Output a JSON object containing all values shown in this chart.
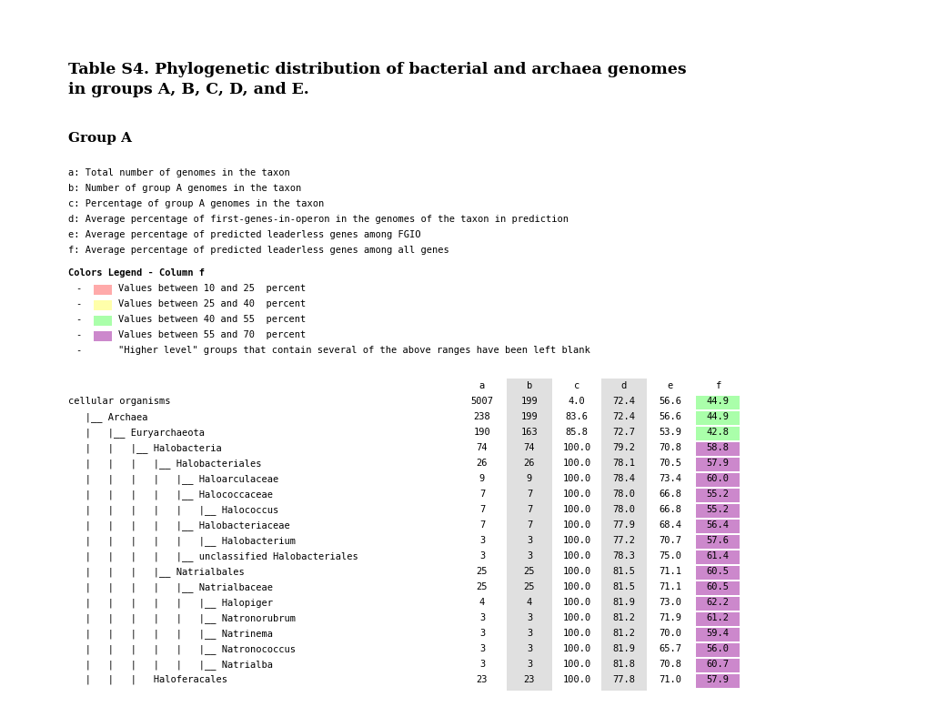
{
  "title_line1": "Table S4. Phylogenetic distribution of bacterial and archaea genomes",
  "title_line2": "in groups A, B, C, D, and E.",
  "group_label": "Group A",
  "legend_title": "Colors Legend - Column f",
  "legend_items": [
    {
      "color": "#FFAAAA",
      "text": "Values between 10 and 25  percent"
    },
    {
      "color": "#FFFFAA",
      "text": "Values between 25 and 40  percent"
    },
    {
      "color": "#AAFFAA",
      "text": "Values between 40 and 55  percent"
    },
    {
      "color": "#CC88CC",
      "text": "Values between 55 and 70  percent"
    },
    {
      "color": null,
      "text": "\"Higher level\" groups that contain several of the above ranges have been left blank"
    }
  ],
  "definitions": [
    "a: Total number of genomes in the taxon",
    "b: Number of group A genomes in the taxon",
    "c: Percentage of group A genomes in the taxon",
    "d: Average percentage of first-genes-in-operon in the genomes of the taxon in prediction",
    "e: Average percentage of predicted leaderless genes among FGIO",
    "f: Average percentage of predicted leaderless genes among all genes"
  ],
  "col_headers": [
    "a",
    "b",
    "c",
    "d",
    "e",
    "f"
  ],
  "rows": [
    {
      "name": "cellular organisms",
      "prefix": "",
      "a": "5007",
      "b": "199",
      "c": "4.0",
      "d": "72.4",
      "e": "56.6",
      "f": "44.9",
      "f_val": 44.9
    },
    {
      "name": "Archaea",
      "prefix": "   |__ ",
      "a": "238",
      "b": "199",
      "c": "83.6",
      "d": "72.4",
      "e": "56.6",
      "f": "44.9",
      "f_val": 44.9
    },
    {
      "name": "Euryarchaeota",
      "prefix": "   |   |__ ",
      "a": "190",
      "b": "163",
      "c": "85.8",
      "d": "72.7",
      "e": "53.9",
      "f": "42.8",
      "f_val": 42.8
    },
    {
      "name": "Halobacteria",
      "prefix": "   |   |   |__ ",
      "a": "74",
      "b": "74",
      "c": "100.0",
      "d": "79.2",
      "e": "70.8",
      "f": "58.8",
      "f_val": 58.8
    },
    {
      "name": "Halobacteriales",
      "prefix": "   |   |   |   |__ ",
      "a": "26",
      "b": "26",
      "c": "100.0",
      "d": "78.1",
      "e": "70.5",
      "f": "57.9",
      "f_val": 57.9
    },
    {
      "name": "Haloarculaceae",
      "prefix": "   |   |   |   |   |__ ",
      "a": "9",
      "b": "9",
      "c": "100.0",
      "d": "78.4",
      "e": "73.4",
      "f": "60.0",
      "f_val": 60.0
    },
    {
      "name": "Halococcaceae",
      "prefix": "   |   |   |   |   |__ ",
      "a": "7",
      "b": "7",
      "c": "100.0",
      "d": "78.0",
      "e": "66.8",
      "f": "55.2",
      "f_val": 55.2
    },
    {
      "name": "Halococcus",
      "prefix": "   |   |   |   |   |   |__ ",
      "a": "7",
      "b": "7",
      "c": "100.0",
      "d": "78.0",
      "e": "66.8",
      "f": "55.2",
      "f_val": 55.2
    },
    {
      "name": "Halobacteriaceae",
      "prefix": "   |   |   |   |   |__ ",
      "a": "7",
      "b": "7",
      "c": "100.0",
      "d": "77.9",
      "e": "68.4",
      "f": "56.4",
      "f_val": 56.4
    },
    {
      "name": "Halobacterium",
      "prefix": "   |   |   |   |   |   |__ ",
      "a": "3",
      "b": "3",
      "c": "100.0",
      "d": "77.2",
      "e": "70.7",
      "f": "57.6",
      "f_val": 57.6
    },
    {
      "name": "unclassified Halobacteriales",
      "prefix": "   |   |   |   |   |__ ",
      "a": "3",
      "b": "3",
      "c": "100.0",
      "d": "78.3",
      "e": "75.0",
      "f": "61.4",
      "f_val": 61.4
    },
    {
      "name": "Natrialbales",
      "prefix": "   |   |   |   |__ ",
      "a": "25",
      "b": "25",
      "c": "100.0",
      "d": "81.5",
      "e": "71.1",
      "f": "60.5",
      "f_val": 60.5
    },
    {
      "name": "Natrialbaceae",
      "prefix": "   |   |   |   |   |__ ",
      "a": "25",
      "b": "25",
      "c": "100.0",
      "d": "81.5",
      "e": "71.1",
      "f": "60.5",
      "f_val": 60.5
    },
    {
      "name": "Halopiger",
      "prefix": "   |   |   |   |   |   |__ ",
      "a": "4",
      "b": "4",
      "c": "100.0",
      "d": "81.9",
      "e": "73.0",
      "f": "62.2",
      "f_val": 62.2
    },
    {
      "name": "Natronorubrum",
      "prefix": "   |   |   |   |   |   |__ ",
      "a": "3",
      "b": "3",
      "c": "100.0",
      "d": "81.2",
      "e": "71.9",
      "f": "61.2",
      "f_val": 61.2
    },
    {
      "name": "Natrinema",
      "prefix": "   |   |   |   |   |   |__ ",
      "a": "3",
      "b": "3",
      "c": "100.0",
      "d": "81.2",
      "e": "70.0",
      "f": "59.4",
      "f_val": 59.4
    },
    {
      "name": "Natronococcus",
      "prefix": "   |   |   |   |   |   |__ ",
      "a": "3",
      "b": "3",
      "c": "100.0",
      "d": "81.9",
      "e": "65.7",
      "f": "56.0",
      "f_val": 56.0
    },
    {
      "name": "Natrialba",
      "prefix": "   |   |   |   |   |   |__ ",
      "a": "3",
      "b": "3",
      "c": "100.0",
      "d": "81.8",
      "e": "70.8",
      "f": "60.7",
      "f_val": 60.7
    },
    {
      "name": "Haloferacales",
      "prefix": "   |   |   |   ",
      "a": "23",
      "b": "23",
      "c": "100.0",
      "d": "77.8",
      "e": "71.0",
      "f": "57.9",
      "f_val": 57.9
    }
  ],
  "bg_color": "#ffffff",
  "text_color": "#000000",
  "mono_font": "monospace",
  "title_font": "DejaVu Serif",
  "color_10_25": "#FFAAAA",
  "color_25_40": "#FFFFAA",
  "color_40_55": "#AAFFAA",
  "color_55_70": "#CC88CC",
  "b_highlight_color": "#BBBBBB",
  "d_highlight_color": "#BBBBBB"
}
